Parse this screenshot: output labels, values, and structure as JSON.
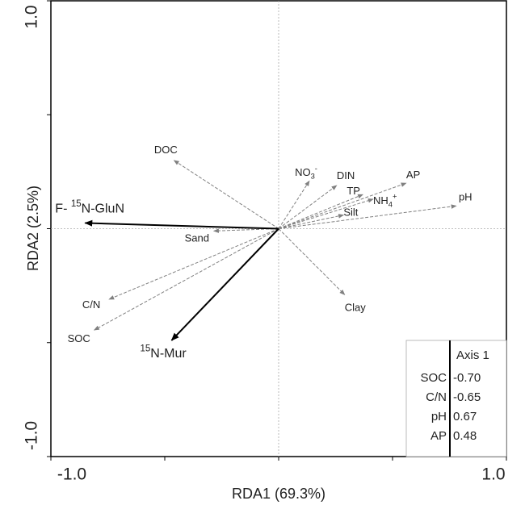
{
  "chart_data": {
    "type": "biplot",
    "xlabel": "RDA1 (69.3%)",
    "ylabel": "RDA2 (2.5%)",
    "xlim": [
      -1,
      1
    ],
    "ylim": [
      -1,
      1
    ],
    "xticks": [
      {
        "value": -1,
        "label": "-1.0"
      },
      {
        "value": 1,
        "label": "1.0"
      }
    ],
    "yticks": [
      {
        "value": -1,
        "label": "-1.0"
      },
      {
        "value": 1,
        "label": "1.0"
      }
    ],
    "xminorticks": [
      -0.5,
      0,
      0.5
    ],
    "yminorticks": [
      -0.5,
      0,
      0.5
    ],
    "vectors": [
      {
        "label": [
          {
            "text": "DOC",
            "shift": "base"
          }
        ],
        "x": -0.46,
        "y": 0.3,
        "color": "#808080",
        "dashed": true
      },
      {
        "label": [
          {
            "text": "NO",
            "shift": "base"
          },
          {
            "text": "3",
            "shift": "sub"
          },
          {
            "text": "-",
            "shift": "sup"
          }
        ],
        "x": 0.135,
        "y": 0.21,
        "color": "#808080",
        "dashed": true
      },
      {
        "label": [
          {
            "text": "DIN",
            "shift": "base"
          }
        ],
        "x": 0.255,
        "y": 0.19,
        "color": "#808080",
        "dashed": true
      },
      {
        "label": [
          {
            "text": "TP",
            "shift": "base"
          }
        ],
        "x": 0.37,
        "y": 0.15,
        "color": "#808080",
        "dashed": true
      },
      {
        "label": [
          {
            "text": "AP",
            "shift": "base"
          }
        ],
        "x": 0.56,
        "y": 0.2,
        "color": "#808080",
        "dashed": true
      },
      {
        "label": [
          {
            "text": "NH",
            "shift": "base"
          },
          {
            "text": "4",
            "shift": "sub"
          },
          {
            "text": "+",
            "shift": "sup"
          }
        ],
        "x": 0.415,
        "y": 0.13,
        "color": "#808080",
        "dashed": true
      },
      {
        "label": [
          {
            "text": "pH",
            "shift": "base"
          }
        ],
        "x": 0.78,
        "y": 0.1,
        "color": "#808080",
        "dashed": true
      },
      {
        "label": [
          {
            "text": "Silt",
            "shift": "base"
          }
        ],
        "x": 0.285,
        "y": 0.06,
        "color": "#808080",
        "dashed": true
      },
      {
        "label": [
          {
            "text": "Sand",
            "shift": "base"
          }
        ],
        "x": -0.285,
        "y": -0.01,
        "color": "#808080",
        "dashed": true
      },
      {
        "label": [
          {
            "text": "Clay",
            "shift": "base"
          }
        ],
        "x": 0.29,
        "y": -0.29,
        "color": "#808080",
        "dashed": true
      },
      {
        "label": [
          {
            "text": "C/N",
            "shift": "base"
          }
        ],
        "x": -0.745,
        "y": -0.31,
        "color": "#808080",
        "dashed": true
      },
      {
        "label": [
          {
            "text": "SOC",
            "shift": "base"
          }
        ],
        "x": -0.81,
        "y": -0.445,
        "color": "#808080",
        "dashed": true
      },
      {
        "label": [
          {
            "text": "F- ",
            "shift": "base"
          },
          {
            "text": "15",
            "shift": "sup"
          },
          {
            "text": "N-GluN",
            "shift": "base"
          }
        ],
        "x": -0.85,
        "y": 0.025,
        "color": "#000000",
        "dashed": false
      },
      {
        "label": [
          {
            "text": "15",
            "shift": "sup"
          },
          {
            "text": "N-Mur",
            "shift": "base"
          }
        ],
        "x": -0.47,
        "y": -0.49,
        "color": "#000000",
        "dashed": false
      }
    ],
    "table": {
      "header": "Axis 1",
      "rows": [
        [
          "SOC",
          "-0.70"
        ],
        [
          "C/N",
          "-0.65"
        ],
        [
          "pH",
          "0.67"
        ],
        [
          "AP",
          "0.48"
        ]
      ]
    }
  }
}
